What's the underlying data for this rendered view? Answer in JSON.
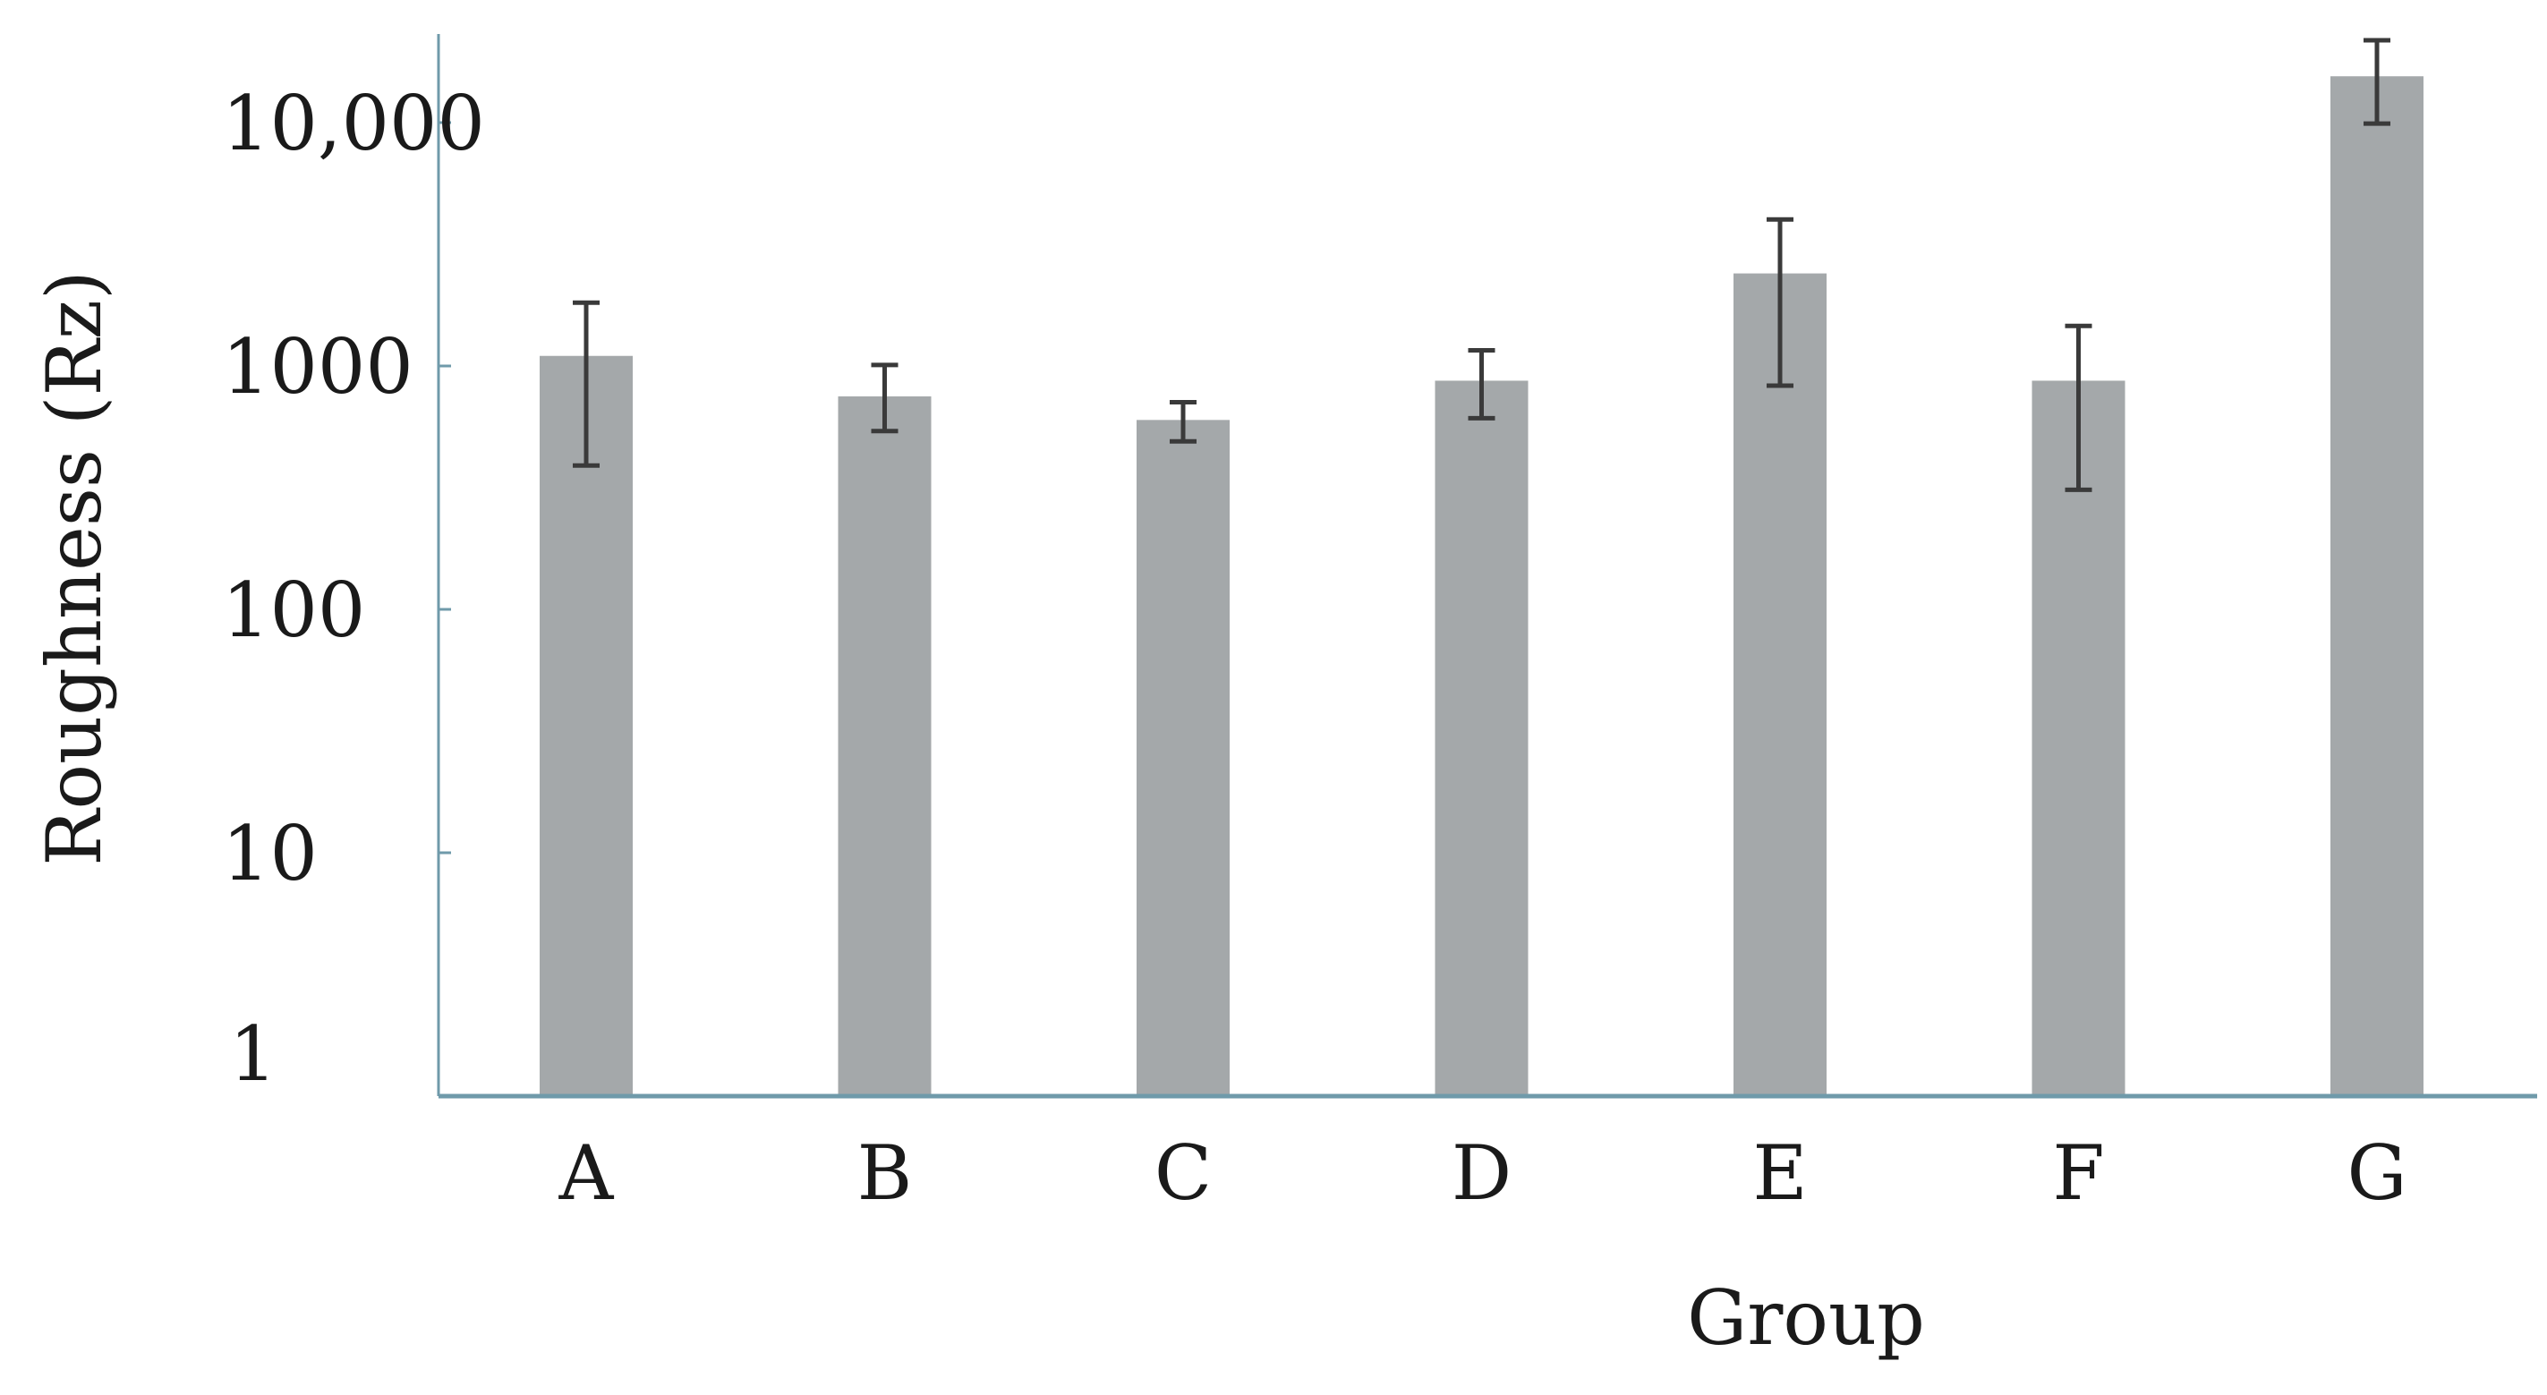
{
  "chart_data": {
    "type": "bar",
    "title": "",
    "xlabel": "Group",
    "ylabel": "Roughness (Rz)",
    "yscale": "log",
    "ylim": [
      1,
      23000
    ],
    "yticks": [
      1,
      10,
      100,
      1000,
      10000
    ],
    "ytick_labels": [
      "1",
      "10",
      "100",
      "1000",
      "10,000"
    ],
    "grid": false,
    "categories": [
      "A",
      "B",
      "C",
      "D",
      "E",
      "F",
      "G"
    ],
    "values": [
      1100,
      750,
      600,
      870,
      2400,
      870,
      15500
    ],
    "error_low": [
      390,
      540,
      490,
      610,
      830,
      310,
      9900
    ],
    "error_high": [
      1820,
      1010,
      710,
      1160,
      4000,
      1460,
      21800
    ],
    "colors": {
      "bar": "#a4a8aa",
      "axis": "#6f9aaa",
      "error_bar": "#3a3a3a"
    }
  }
}
